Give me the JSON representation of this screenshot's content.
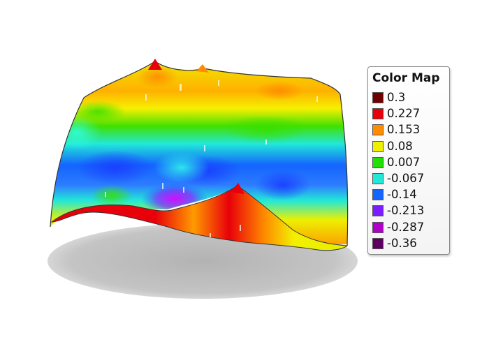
{
  "chart_data": {
    "type": "heatmap",
    "title": "",
    "xlabel": "",
    "ylabel": "",
    "zlim": [
      -0.36,
      0.3
    ],
    "colormap": {
      "title": "Color Map",
      "entries": [
        {
          "value": "0.3",
          "color": "#6e0000"
        },
        {
          "value": "0.227",
          "color": "#e8000a"
        },
        {
          "value": "0.153",
          "color": "#ff8c00"
        },
        {
          "value": "0.08",
          "color": "#eef000"
        },
        {
          "value": "0.007",
          "color": "#1fe000"
        },
        {
          "value": "-0.067",
          "color": "#22e8d8"
        },
        {
          "value": "-0.14",
          "color": "#1464ff"
        },
        {
          "value": "-0.213",
          "color": "#7a1cff"
        },
        {
          "value": "-0.287",
          "color": "#b000c8"
        },
        {
          "value": "-0.36",
          "color": "#5c0060"
        }
      ]
    }
  }
}
